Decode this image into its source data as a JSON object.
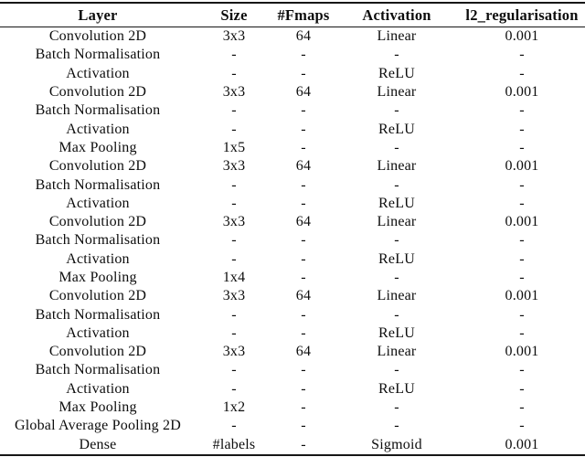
{
  "table": {
    "columns": [
      "Layer",
      "Size",
      "#Fmaps",
      "Activation",
      "l2_regularisation"
    ],
    "rows": [
      [
        "Convolution 2D",
        "3x3",
        "64",
        "Linear",
        "0.001"
      ],
      [
        "Batch Normalisation",
        "-",
        "-",
        "-",
        "-"
      ],
      [
        "Activation",
        "-",
        "-",
        "ReLU",
        "-"
      ],
      [
        "Convolution 2D",
        "3x3",
        "64",
        "Linear",
        "0.001"
      ],
      [
        "Batch Normalisation",
        "-",
        "-",
        "-",
        "-"
      ],
      [
        "Activation",
        "-",
        "-",
        "ReLU",
        "-"
      ],
      [
        "Max Pooling",
        "1x5",
        "-",
        "-",
        "-"
      ],
      [
        "Convolution 2D",
        "3x3",
        "64",
        "Linear",
        "0.001"
      ],
      [
        "Batch Normalisation",
        "-",
        "-",
        "-",
        "-"
      ],
      [
        "Activation",
        "-",
        "-",
        "ReLU",
        "-"
      ],
      [
        "Convolution 2D",
        "3x3",
        "64",
        "Linear",
        "0.001"
      ],
      [
        "Batch Normalisation",
        "-",
        "-",
        "-",
        "-"
      ],
      [
        "Activation",
        "-",
        "-",
        "ReLU",
        "-"
      ],
      [
        "Max Pooling",
        "1x4",
        "-",
        "-",
        "-"
      ],
      [
        "Convolution 2D",
        "3x3",
        "64",
        "Linear",
        "0.001"
      ],
      [
        "Batch Normalisation",
        "-",
        "-",
        "-",
        "-"
      ],
      [
        "Activation",
        "-",
        "-",
        "ReLU",
        "-"
      ],
      [
        "Convolution 2D",
        "3x3",
        "64",
        "Linear",
        "0.001"
      ],
      [
        "Batch Normalisation",
        "-",
        "-",
        "-",
        "-"
      ],
      [
        "Activation",
        "-",
        "-",
        "ReLU",
        "-"
      ],
      [
        "Max Pooling",
        "1x2",
        "-",
        "-",
        "-"
      ],
      [
        "Global Average Pooling 2D",
        "-",
        "-",
        "-",
        "-"
      ],
      [
        "Dense",
        "#labels",
        "-",
        "Sigmoid",
        "0.001"
      ]
    ],
    "colors": {
      "text": "#0d0d0d",
      "rule": "#161616",
      "background": "#ffffff"
    }
  }
}
